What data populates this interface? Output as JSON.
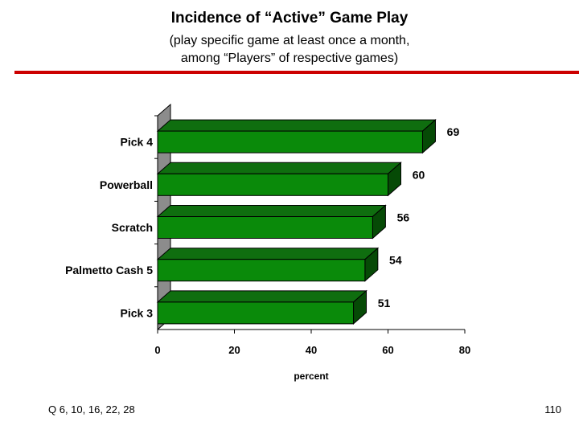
{
  "header": {
    "title": "Incidence of “Active” Game Play",
    "subtitle_line1": "(play specific game at least once a month,",
    "subtitle_line2": "among “Players” of respective games)"
  },
  "footer": {
    "question_ref": "Q 6, 10, 16, 22, 28",
    "page_number": "110"
  },
  "colors": {
    "accent_rule": "#cc0000",
    "bar_front": "#0a8a0a",
    "bar_top": "#0f6e0f",
    "bar_side": "#064a06",
    "wall": "#8c8c8c"
  },
  "chart_data": {
    "type": "bar",
    "orientation": "horizontal",
    "style": "3d",
    "categories": [
      "Pick 4",
      "Powerball",
      "Scratch",
      "Palmetto Cash 5",
      "Pick 3"
    ],
    "values": [
      69,
      60,
      56,
      54,
      51
    ],
    "data_labels": [
      "69",
      "60",
      "56",
      "54",
      "51"
    ],
    "xlabel": "percent",
    "xlim": [
      0,
      80
    ],
    "x_ticks": [
      "0",
      "20",
      "40",
      "60",
      "80"
    ],
    "grid": false,
    "legend": "none"
  }
}
